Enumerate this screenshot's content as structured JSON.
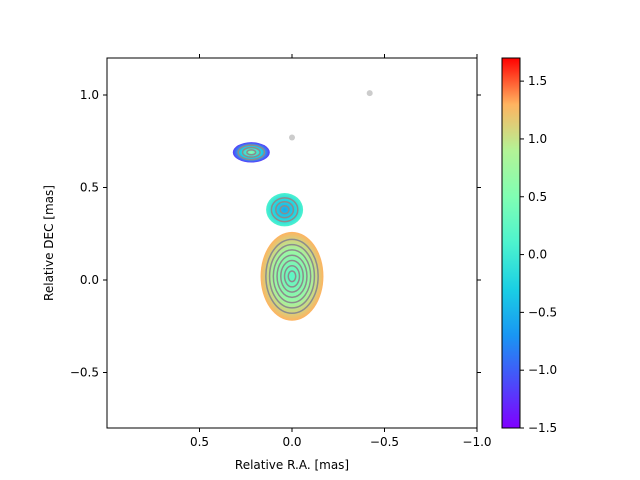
{
  "chart_data": {
    "type": "heatmap",
    "title": "",
    "xlabel": "Relative R.A. [mas]",
    "ylabel": "Relative DEC [mas]",
    "xlim": [
      1.0,
      -1.0
    ],
    "ylim": [
      -0.8,
      1.2
    ],
    "x_inverted": true,
    "xticks": [
      0.5,
      0.0,
      -0.5,
      -1.0
    ],
    "xtick_labels": [
      "0.5",
      "0.0",
      "−0.5",
      "−1.0"
    ],
    "yticks": [
      1.0,
      0.5,
      0.0,
      -0.5
    ],
    "ytick_labels": [
      "1.0",
      "0.5",
      "0.0",
      "−0.5"
    ],
    "grid": false,
    "colormap": "rainbow",
    "colorbar": {
      "range": [
        -1.5,
        1.7
      ],
      "ticks": [
        1.5,
        1.0,
        0.5,
        0.0,
        -0.5,
        -1.0,
        -1.5
      ],
      "tick_labels": [
        "1.5",
        "1.0",
        "0.5",
        "0.0",
        "−0.5",
        "−1.0",
        "−1.5"
      ]
    },
    "regions": [
      {
        "component": "core",
        "center": [
          0.0,
          0.02
        ],
        "size": [
          0.17,
          0.24
        ],
        "value_center": 0.2,
        "value_edge": 1.3
      },
      {
        "component": "inner-jet",
        "center": [
          0.04,
          0.38
        ],
        "size": [
          0.1,
          0.09
        ],
        "value_center": -0.55,
        "value_edge": 0.1
      },
      {
        "component": "outer-jet",
        "center": [
          0.22,
          0.69
        ],
        "size": [
          0.1,
          0.055
        ],
        "value_center": 0.55,
        "value_edge": -1.2
      },
      {
        "component": "faint-emission",
        "center": [
          -0.42,
          1.01
        ],
        "value": "grey"
      },
      {
        "component": "faint-emission",
        "center": [
          0.0,
          0.77
        ],
        "value": "grey"
      }
    ],
    "contour_color": "#8c8c8c"
  }
}
